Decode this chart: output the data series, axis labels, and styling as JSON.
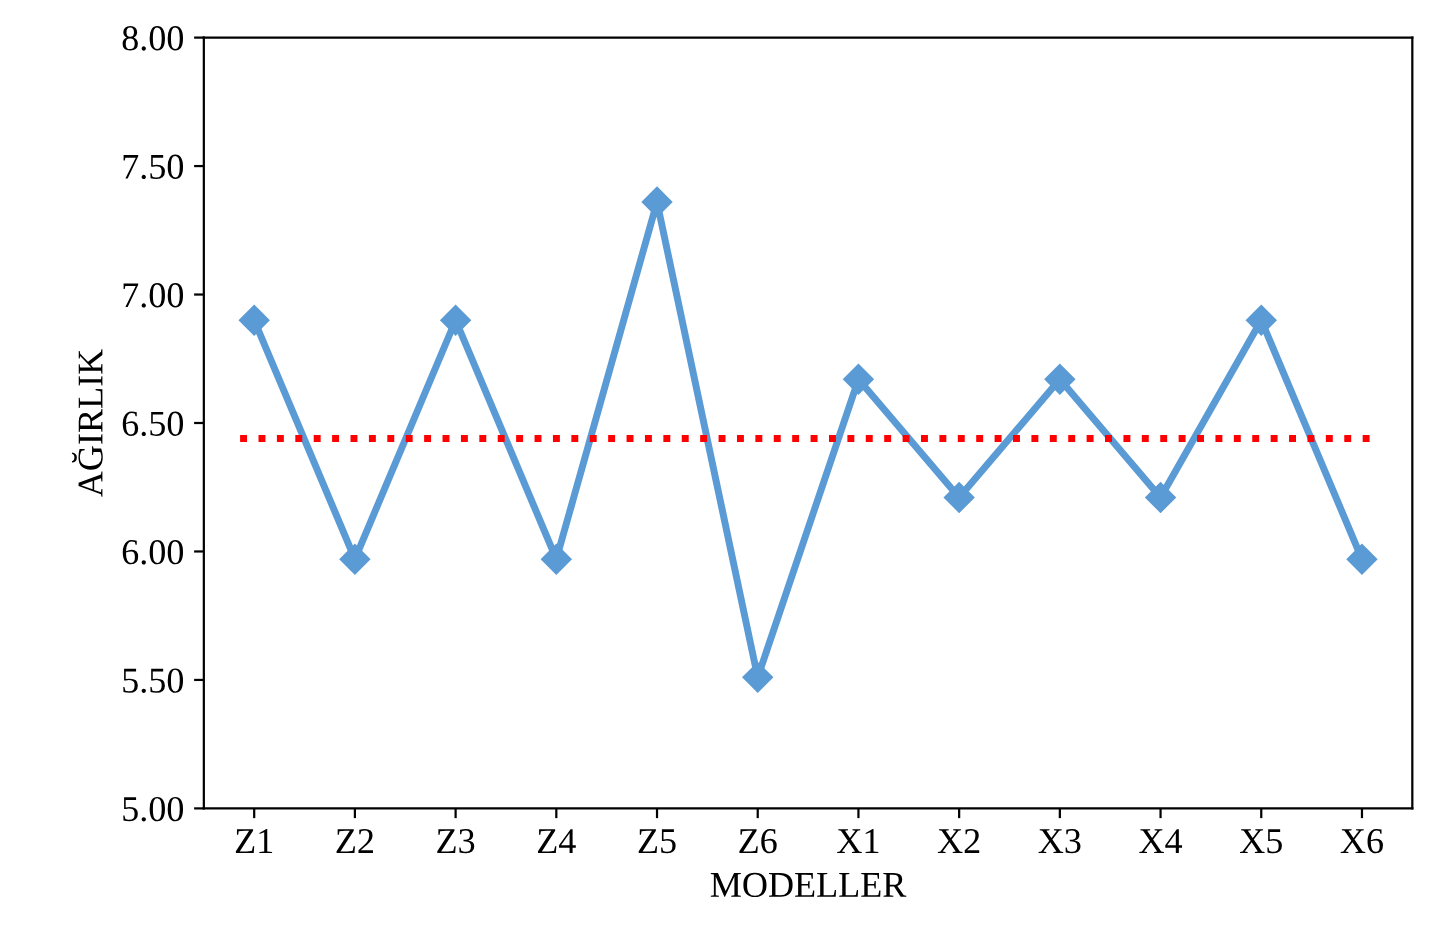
{
  "chart_data": {
    "type": "line",
    "xlabel": "MODELLER",
    "ylabel": "AĞIRLIK",
    "categories": [
      "Z1",
      "Z2",
      "Z3",
      "Z4",
      "Z5",
      "Z6",
      "X1",
      "X2",
      "X3",
      "X4",
      "X5",
      "X6"
    ],
    "series": [
      {
        "color": "#5b9bd5",
        "values": [
          6.9,
          5.97,
          6.9,
          5.97,
          7.36,
          5.51,
          6.67,
          6.21,
          6.67,
          6.21,
          6.9,
          5.97
        ]
      }
    ],
    "ylim": [
      5,
      8
    ],
    "yticks": [
      {
        "value": 5,
        "label": "5.00"
      },
      {
        "value": 5.5,
        "label": "5.50"
      },
      {
        "value": 6,
        "label": "6.00"
      },
      {
        "value": 6.5,
        "label": "6.50"
      },
      {
        "value": 7,
        "label": "7.00"
      },
      {
        "value": 7.5,
        "label": "7.50"
      },
      {
        "value": 8,
        "label": "8.00"
      }
    ],
    "ref_lines": [
      {
        "axis": "y",
        "value": 6.44,
        "color": "#ff0000",
        "line_style": "dotted"
      }
    ],
    "marker": "diamond",
    "line_style": "solid",
    "grid": false,
    "legend": false
  }
}
